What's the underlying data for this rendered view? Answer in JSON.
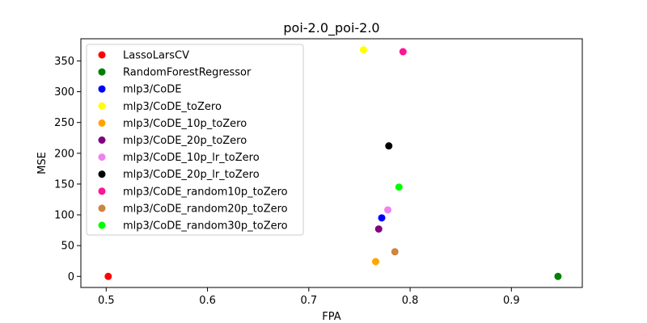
{
  "chart_data": {
    "type": "scatter",
    "title": "poi-2.0_poi-2.0",
    "xlabel": "FPA",
    "ylabel": "MSE",
    "xlim": [
      0.475,
      0.97
    ],
    "ylim": [
      -18,
      386
    ],
    "xticks": [
      0.5,
      0.6,
      0.7,
      0.8,
      0.9
    ],
    "xtick_labels": [
      "0.5",
      "0.6",
      "0.7",
      "0.8",
      "0.9"
    ],
    "yticks": [
      0,
      50,
      100,
      150,
      200,
      250,
      300,
      350
    ],
    "ytick_labels": [
      "0",
      "50",
      "100",
      "150",
      "200",
      "250",
      "300",
      "350"
    ],
    "grid": false,
    "legend_position": "upper-left",
    "series": [
      {
        "name": "LassoLarsCV",
        "color": "#ff0000",
        "x": [
          0.502
        ],
        "y": [
          0
        ]
      },
      {
        "name": "RandomForestRegressor",
        "color": "#008000",
        "x": [
          0.946
        ],
        "y": [
          0
        ]
      },
      {
        "name": "mlp3/CoDE",
        "color": "#0000ff",
        "x": [
          0.772
        ],
        "y": [
          95
        ]
      },
      {
        "name": "mlp3/CoDE_toZero",
        "color": "#ffff00",
        "x": [
          0.754
        ],
        "y": [
          368
        ]
      },
      {
        "name": "mlp3/CoDE_10p_toZero",
        "color": "#ffa500",
        "x": [
          0.766
        ],
        "y": [
          24
        ]
      },
      {
        "name": "mlp3/CoDE_20p_toZero",
        "color": "#800080",
        "x": [
          0.769
        ],
        "y": [
          77
        ]
      },
      {
        "name": "mlp3/CoDE_10p_lr_toZero",
        "color": "#ee82ee",
        "x": [
          0.778
        ],
        "y": [
          108
        ]
      },
      {
        "name": "mlp3/CoDE_20p_lr_toZero",
        "color": "#000000",
        "x": [
          0.779
        ],
        "y": [
          212
        ]
      },
      {
        "name": "mlp3/CoDE_random10p_toZero",
        "color": "#ff1493",
        "x": [
          0.793
        ],
        "y": [
          365
        ]
      },
      {
        "name": "mlp3/CoDE_random20p_toZero",
        "color": "#cd853f",
        "x": [
          0.785
        ],
        "y": [
          40
        ]
      },
      {
        "name": "mlp3/CoDE_random30p_toZero",
        "color": "#00ff00",
        "x": [
          0.789
        ],
        "y": [
          145
        ]
      }
    ]
  }
}
